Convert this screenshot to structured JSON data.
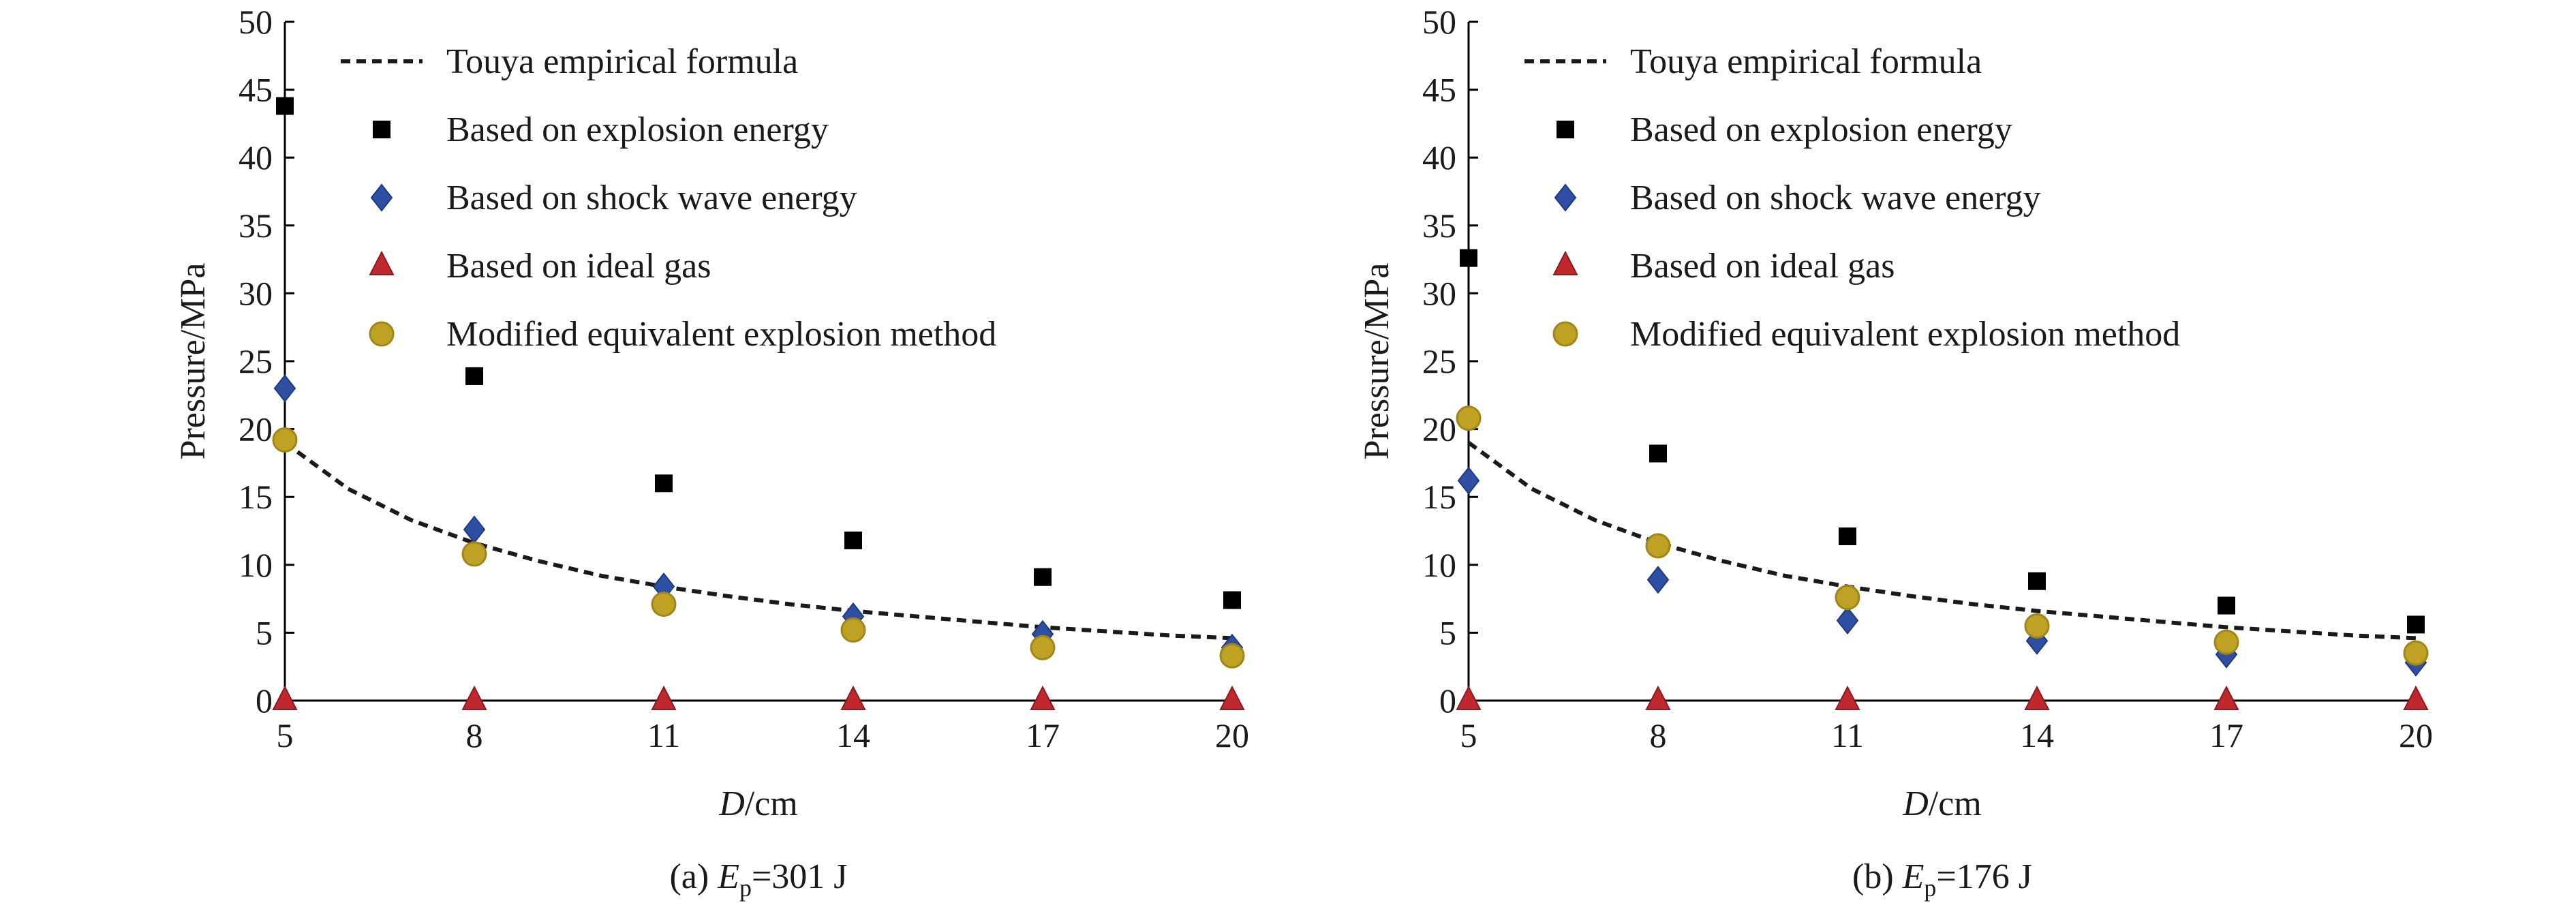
{
  "chart_data": [
    {
      "type": "scatter",
      "caption_prefix": "(a) ",
      "caption_var": "E",
      "caption_sub": "p",
      "caption_suffix": "=301 J",
      "xlabel_var": "D",
      "xlabel_unit": "/cm",
      "ylabel": "Pressure/MPa",
      "xlim": [
        5,
        20
      ],
      "ylim": [
        0,
        50
      ],
      "xticks": [
        5,
        8,
        11,
        14,
        17,
        20
      ],
      "yticks": [
        0,
        5,
        10,
        15,
        20,
        25,
        30,
        35,
        40,
        45,
        50
      ],
      "legend_position": "top",
      "grid": false,
      "curve": {
        "name": "Touya empirical formula",
        "x": [
          5,
          6,
          7,
          8,
          9,
          10,
          11,
          12,
          13,
          14,
          15,
          16,
          17,
          18,
          19,
          20
        ],
        "y": [
          19.0,
          15.6,
          13.3,
          11.6,
          10.3,
          9.2,
          8.4,
          7.7,
          7.1,
          6.6,
          6.2,
          5.8,
          5.4,
          5.1,
          4.8,
          4.6
        ]
      },
      "series": [
        {
          "name": "Based on explosion energy",
          "marker": "square",
          "color": "#000000",
          "x": [
            5,
            8,
            11,
            14,
            17,
            20
          ],
          "y": [
            43.8,
            23.9,
            16.0,
            11.8,
            9.1,
            7.4
          ]
        },
        {
          "name": "Based on shock wave energy",
          "marker": "diamond",
          "color": "#2e4fa3",
          "x": [
            5,
            8,
            11,
            14,
            17,
            20
          ],
          "y": [
            23.0,
            12.6,
            8.4,
            6.2,
            4.9,
            3.9
          ]
        },
        {
          "name": "Based on ideal gas",
          "marker": "triangle",
          "color": "#c0282e",
          "x": [
            5,
            8,
            11,
            14,
            17,
            20
          ],
          "y": [
            0,
            0,
            0,
            0,
            0,
            0
          ]
        },
        {
          "name": "Modified equivalent explosion method",
          "marker": "circle",
          "color": "#bfa224",
          "x": [
            5,
            8,
            11,
            14,
            17,
            20
          ],
          "y": [
            19.2,
            10.8,
            7.1,
            5.2,
            3.9,
            3.3
          ]
        }
      ]
    },
    {
      "type": "scatter",
      "caption_prefix": "(b) ",
      "caption_var": "E",
      "caption_sub": "p",
      "caption_suffix": "=176 J",
      "xlabel_var": "D",
      "xlabel_unit": "/cm",
      "ylabel": "Pressure/MPa",
      "xlim": [
        5,
        20
      ],
      "ylim": [
        0,
        50
      ],
      "xticks": [
        5,
        8,
        11,
        14,
        17,
        20
      ],
      "yticks": [
        0,
        5,
        10,
        15,
        20,
        25,
        30,
        35,
        40,
        45,
        50
      ],
      "legend_position": "top",
      "grid": false,
      "curve": {
        "name": "Touya empirical formula",
        "x": [
          5,
          6,
          7,
          8,
          9,
          10,
          11,
          12,
          13,
          14,
          15,
          16,
          17,
          18,
          19,
          20
        ],
        "y": [
          19.0,
          15.6,
          13.3,
          11.6,
          10.3,
          9.2,
          8.4,
          7.7,
          7.1,
          6.6,
          6.2,
          5.8,
          5.4,
          5.1,
          4.8,
          4.6
        ]
      },
      "series": [
        {
          "name": "Based on explosion energy",
          "marker": "square",
          "color": "#000000",
          "x": [
            5,
            8,
            11,
            14,
            17,
            20
          ],
          "y": [
            32.6,
            18.2,
            12.1,
            8.8,
            7.0,
            5.6
          ]
        },
        {
          "name": "Based on shock wave energy",
          "marker": "diamond",
          "color": "#2e4fa3",
          "x": [
            5,
            8,
            11,
            14,
            17,
            20
          ],
          "y": [
            16.2,
            8.9,
            5.9,
            4.4,
            3.4,
            2.8
          ]
        },
        {
          "name": "Based on ideal gas",
          "marker": "triangle",
          "color": "#c0282e",
          "x": [
            5,
            8,
            11,
            14,
            17,
            20
          ],
          "y": [
            0,
            0,
            0,
            0,
            0,
            0
          ]
        },
        {
          "name": "Modified equivalent explosion method",
          "marker": "circle",
          "color": "#bfa224",
          "x": [
            5,
            8,
            11,
            14,
            17,
            20
          ],
          "y": [
            20.8,
            11.4,
            7.6,
            5.5,
            4.3,
            3.5
          ]
        }
      ]
    }
  ]
}
